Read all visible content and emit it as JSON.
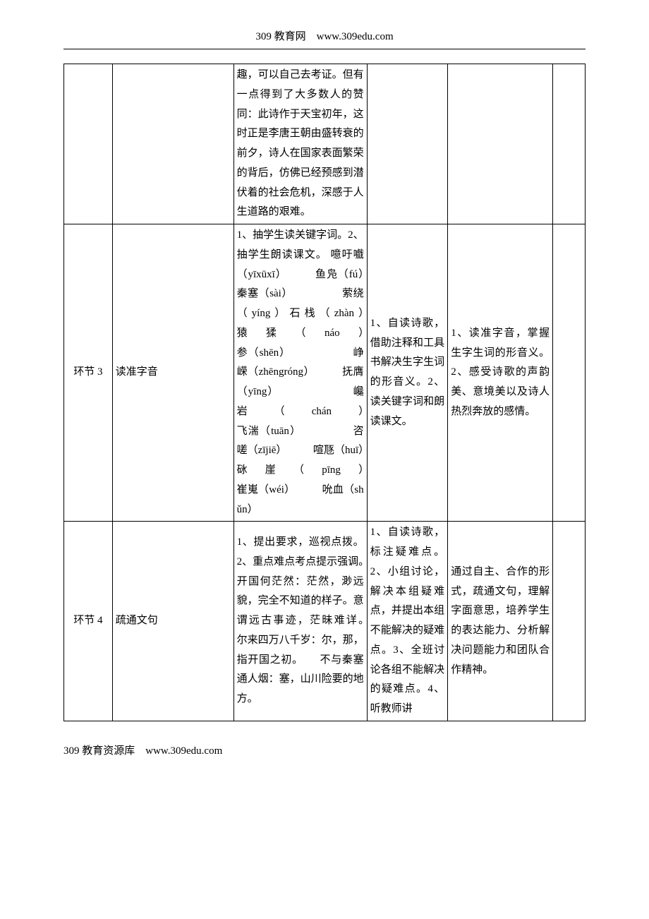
{
  "header": "309 教育网　www.309edu.com",
  "footer": "309 教育资源库　www.309edu.com",
  "rows": [
    {
      "c1": "",
      "c2": "",
      "c3": "趣，可以自己去考证。但有一点得到了大多数人的赞同：此诗作于天宝初年，这时正是李唐王朝由盛转衰的前夕，诗人在国家表面繁荣的背后，仿佛已经预感到潜伏着的社会危机，深感于人生道路的艰难。",
      "c4": "",
      "c5": "",
      "c6": ""
    },
    {
      "c1": "环节 3",
      "c2": "读准字音",
      "c3": "1、抽学生读关键字词。2、抽学生朗读课文。\n噫吁嚱（yīxūxī）　　　鱼凫（fú）　　　　　秦塞（sài）　　　　　萦绕（yíng）石栈（zhàn）　　　猿猱（náo）　　　　　　　　　　参（shēn）　　　　　　峥嵘（zhēngróng）　　　抚膺（yīng）　　　　　　　巉岩（chán）　　　　　　　飞湍（tuān）　　　　　咨嗟（zījiē）　　　喧豗（huī）　　　　　砯崖（pīng）　　　　　　　崔嵬（wéi）　　　吮血（shǔn）",
      "c4": "1、自读诗歌，借助注释和工具书解决生字生词的形音义。2、读关键字词和朗读课文。",
      "c5": "1、读准字音，掌握生字生词的形音义。2、感受诗歌的声韵美、意境美以及诗人热烈奔放的感情。",
      "c6": ""
    },
    {
      "c1": "环节 4",
      "c2": "疏通文句",
      "c3": "1、提出要求，巡视点拨。2、重点难点考点提示强调。　　开国何茫然：茫然，渺远貌，完全不知道的样子。意谓远古事迹，茫昧难详。　　尔来四万八千岁：尔，那，指开国之初。　　不与秦塞通人烟：塞，山川险要的地方。",
      "c4": "1、自读诗歌，标注疑难点。2、小组讨论，解决本组疑难点，并提出本组不能解决的疑难点。3、全班讨论各组不能解决的疑难点。4、听教师讲",
      "c5": "通过自主、合作的形式，疏通文句，理解字面意思，培养学生的表达能力、分析解决问题能力和团队合作精神。",
      "c6": ""
    }
  ]
}
